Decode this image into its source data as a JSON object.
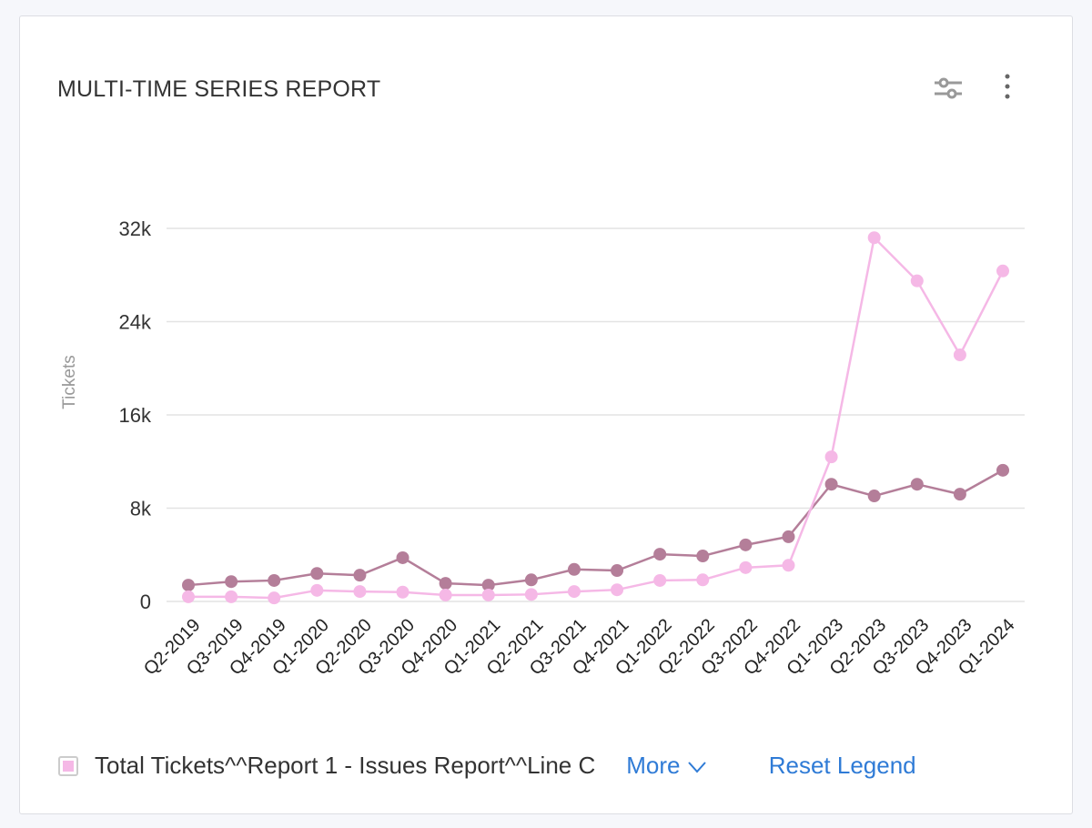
{
  "card": {
    "title": "MULTI-TIME SERIES REPORT",
    "icons": [
      "sliders-icon",
      "more-vertical-icon"
    ]
  },
  "legend": {
    "item": "Total Tickets^^Report 1 - Issues Report^^Line C",
    "more_label": "More",
    "reset_label": "Reset Legend"
  },
  "chart_data": {
    "type": "line",
    "title": "",
    "xlabel": "",
    "ylabel": "Tickets",
    "ylim": [
      0,
      32000
    ],
    "yticks": [
      0,
      8000,
      16000,
      24000,
      32000
    ],
    "ytick_labels": [
      "0",
      "8k",
      "16k",
      "24k",
      "32k"
    ],
    "grid": true,
    "categories": [
      "Q2-2019",
      "Q3-2019",
      "Q4-2019",
      "Q1-2020",
      "Q2-2020",
      "Q3-2020",
      "Q4-2020",
      "Q1-2021",
      "Q2-2021",
      "Q3-2021",
      "Q4-2021",
      "Q1-2022",
      "Q2-2022",
      "Q3-2022",
      "Q4-2022",
      "Q1-2023",
      "Q2-2023",
      "Q3-2023",
      "Q4-2023",
      "Q1-2024"
    ],
    "series": [
      {
        "color": "#b47e99",
        "values": [
          1400,
          1700,
          1800,
          2400,
          2250,
          3750,
          1550,
          1400,
          1850,
          2750,
          2650,
          4050,
          3900,
          4850,
          5550,
          10050,
          9050,
          10050,
          9200,
          11250
        ]
      },
      {
        "name": "Total Tickets^^Report 1 - Issues Report^^Line C",
        "color": "#f5b8e6",
        "values": [
          400,
          400,
          300,
          950,
          850,
          800,
          550,
          550,
          600,
          850,
          1000,
          1800,
          1850,
          2900,
          3100,
          12400,
          31200,
          27500,
          21150,
          28350
        ]
      }
    ]
  }
}
